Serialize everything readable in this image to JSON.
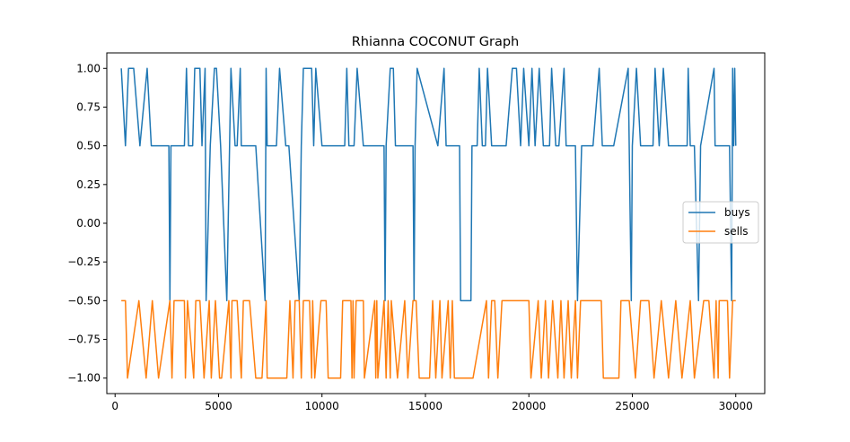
{
  "chart_data": {
    "type": "line",
    "title": "Rhianna COCONUT Graph",
    "xlabel": "",
    "ylabel": "",
    "xlim": [
      -400,
      31400
    ],
    "ylim": [
      -1.1,
      1.1
    ],
    "x_ticks": [
      0,
      5000,
      10000,
      15000,
      20000,
      25000,
      30000
    ],
    "y_ticks": [
      1.0,
      0.75,
      0.5,
      0.25,
      0.0,
      -0.25,
      -0.5,
      -0.75,
      -1.0
    ],
    "x_tick_labels": [
      "0",
      "5000",
      "10000",
      "15000",
      "20000",
      "25000",
      "30000"
    ],
    "y_tick_labels": [
      "1.00",
      "0.75",
      "0.50",
      "0.25",
      "0.00",
      "−0.25",
      "−0.50",
      "−0.75",
      "−1.00"
    ],
    "grid": false,
    "legend_position": "center-right",
    "series": [
      {
        "name": "buys",
        "color": "#1f77b4",
        "points": [
          [
            300,
            1
          ],
          [
            500,
            0.5
          ],
          [
            650,
            1
          ],
          [
            900,
            1
          ],
          [
            1200,
            0.5
          ],
          [
            1550,
            1
          ],
          [
            1750,
            0.5
          ],
          [
            2600,
            0.5
          ],
          [
            2650,
            -0.5
          ],
          [
            2700,
            0.5
          ],
          [
            3350,
            0.5
          ],
          [
            3450,
            1
          ],
          [
            3550,
            0.5
          ],
          [
            3750,
            0.5
          ],
          [
            3850,
            1
          ],
          [
            4100,
            1
          ],
          [
            4200,
            0.5
          ],
          [
            4350,
            1
          ],
          [
            4400,
            -0.5
          ],
          [
            4600,
            0.5
          ],
          [
            4800,
            1
          ],
          [
            4900,
            1
          ],
          [
            5100,
            0.5
          ],
          [
            5400,
            -0.5
          ],
          [
            5600,
            1
          ],
          [
            5800,
            0.5
          ],
          [
            5900,
            0.5
          ],
          [
            6050,
            1
          ],
          [
            6100,
            0.5
          ],
          [
            6800,
            0.5
          ],
          [
            7250,
            -0.5
          ],
          [
            7300,
            1
          ],
          [
            7350,
            0.5
          ],
          [
            7800,
            0.5
          ],
          [
            7950,
            1
          ],
          [
            8250,
            0.5
          ],
          [
            8400,
            0.5
          ],
          [
            8900,
            -0.5
          ],
          [
            9000,
            0.5
          ],
          [
            9100,
            1
          ],
          [
            9500,
            1
          ],
          [
            9600,
            0.5
          ],
          [
            9700,
            1
          ],
          [
            10000,
            0.5
          ],
          [
            11100,
            0.5
          ],
          [
            11200,
            1
          ],
          [
            11300,
            0.5
          ],
          [
            11550,
            0.5
          ],
          [
            11700,
            1
          ],
          [
            12000,
            0.5
          ],
          [
            13000,
            0.5
          ],
          [
            13050,
            -0.5
          ],
          [
            13100,
            0.5
          ],
          [
            13300,
            1
          ],
          [
            13450,
            1
          ],
          [
            13550,
            0.5
          ],
          [
            14400,
            0.5
          ],
          [
            14450,
            -0.5
          ],
          [
            14500,
            0.5
          ],
          [
            14600,
            1
          ],
          [
            15600,
            0.5
          ],
          [
            15900,
            1
          ],
          [
            16000,
            0.5
          ],
          [
            16650,
            0.5
          ],
          [
            16700,
            -0.5
          ],
          [
            17200,
            -0.5
          ],
          [
            17250,
            0.5
          ],
          [
            17500,
            0.5
          ],
          [
            17600,
            1
          ],
          [
            17750,
            0.5
          ],
          [
            17900,
            0.5
          ],
          [
            18000,
            1
          ],
          [
            18200,
            0.5
          ],
          [
            18900,
            0.5
          ],
          [
            19200,
            1
          ],
          [
            19400,
            1
          ],
          [
            19600,
            0.5
          ],
          [
            19750,
            1
          ],
          [
            20000,
            0.5
          ],
          [
            20150,
            1
          ],
          [
            20300,
            0.5
          ],
          [
            20500,
            1
          ],
          [
            20700,
            0.5
          ],
          [
            21000,
            0.5
          ],
          [
            21100,
            1
          ],
          [
            21300,
            0.5
          ],
          [
            21450,
            0.5
          ],
          [
            21700,
            1
          ],
          [
            21800,
            0.5
          ],
          [
            22250,
            0.5
          ],
          [
            22350,
            -0.5
          ],
          [
            22550,
            0.5
          ],
          [
            23100,
            0.5
          ],
          [
            23400,
            1
          ],
          [
            23550,
            0.5
          ],
          [
            24000,
            0.5
          ],
          [
            24100,
            0.5
          ],
          [
            24800,
            1
          ],
          [
            24950,
            -0.5
          ],
          [
            25000,
            0.5
          ],
          [
            25200,
            1
          ],
          [
            25400,
            0.5
          ],
          [
            26000,
            0.5
          ],
          [
            26100,
            1
          ],
          [
            26300,
            0.5
          ],
          [
            26500,
            1
          ],
          [
            26750,
            0.5
          ],
          [
            27650,
            0.5
          ],
          [
            27700,
            1
          ],
          [
            27800,
            0.5
          ],
          [
            28000,
            0.5
          ],
          [
            28200,
            -0.5
          ],
          [
            28300,
            0.5
          ],
          [
            28950,
            1
          ],
          [
            29000,
            0.5
          ],
          [
            29700,
            0.5
          ],
          [
            29800,
            -0.5
          ],
          [
            29850,
            1
          ],
          [
            29900,
            0.5
          ],
          [
            29950,
            1
          ],
          [
            30000,
            0.5
          ]
        ]
      },
      {
        "name": "sells",
        "color": "#ff7f0e",
        "points": [
          [
            300,
            -0.5
          ],
          [
            500,
            -0.5
          ],
          [
            600,
            -1
          ],
          [
            1150,
            -0.5
          ],
          [
            1500,
            -1
          ],
          [
            1800,
            -0.5
          ],
          [
            2100,
            -1
          ],
          [
            2650,
            -0.5
          ],
          [
            2750,
            -1
          ],
          [
            2850,
            -0.5
          ],
          [
            3350,
            -0.5
          ],
          [
            3400,
            -1
          ],
          [
            3500,
            -0.5
          ],
          [
            3800,
            -1
          ],
          [
            3900,
            -0.5
          ],
          [
            4100,
            -0.5
          ],
          [
            4300,
            -1
          ],
          [
            4550,
            -0.5
          ],
          [
            4650,
            -1
          ],
          [
            4850,
            -0.5
          ],
          [
            5050,
            -1
          ],
          [
            5150,
            -1
          ],
          [
            5500,
            -0.5
          ],
          [
            5600,
            -1
          ],
          [
            5650,
            -0.5
          ],
          [
            5900,
            -0.5
          ],
          [
            6100,
            -1
          ],
          [
            6200,
            -0.5
          ],
          [
            6500,
            -0.5
          ],
          [
            6800,
            -1
          ],
          [
            7100,
            -1
          ],
          [
            7300,
            -0.5
          ],
          [
            7350,
            -1
          ],
          [
            8300,
            -1
          ],
          [
            8450,
            -0.5
          ],
          [
            8600,
            -1
          ],
          [
            8700,
            -0.5
          ],
          [
            8900,
            -0.5
          ],
          [
            9000,
            -1
          ],
          [
            9100,
            -0.5
          ],
          [
            9400,
            -0.5
          ],
          [
            9500,
            -1
          ],
          [
            9550,
            -0.5
          ],
          [
            9650,
            -1
          ],
          [
            9950,
            -0.5
          ],
          [
            10200,
            -0.5
          ],
          [
            10300,
            -1
          ],
          [
            10900,
            -1
          ],
          [
            11000,
            -0.5
          ],
          [
            11400,
            -0.5
          ],
          [
            11450,
            -1
          ],
          [
            11500,
            -0.5
          ],
          [
            11550,
            -1
          ],
          [
            11650,
            -0.5
          ],
          [
            12000,
            -0.5
          ],
          [
            12050,
            -1
          ],
          [
            12550,
            -0.5
          ],
          [
            12600,
            -1
          ],
          [
            12650,
            -0.5
          ],
          [
            12700,
            -1
          ],
          [
            13000,
            -0.5
          ],
          [
            13100,
            -1
          ],
          [
            13200,
            -0.5
          ],
          [
            13300,
            -1
          ],
          [
            13350,
            -0.5
          ],
          [
            13650,
            -1
          ],
          [
            14000,
            -0.5
          ],
          [
            14150,
            -1
          ],
          [
            14400,
            -0.5
          ],
          [
            14550,
            -0.5
          ],
          [
            14700,
            -1
          ],
          [
            15200,
            -1
          ],
          [
            15350,
            -0.5
          ],
          [
            15500,
            -1
          ],
          [
            15700,
            -0.5
          ],
          [
            15800,
            -1
          ],
          [
            16100,
            -0.5
          ],
          [
            16200,
            -1
          ],
          [
            16300,
            -0.5
          ],
          [
            16400,
            -1
          ],
          [
            17300,
            -1
          ],
          [
            17950,
            -0.5
          ],
          [
            18050,
            -1
          ],
          [
            18200,
            -0.5
          ],
          [
            18350,
            -0.5
          ],
          [
            18500,
            -1
          ],
          [
            18700,
            -0.5
          ],
          [
            20000,
            -0.5
          ],
          [
            20100,
            -1
          ],
          [
            20450,
            -0.5
          ],
          [
            20600,
            -1
          ],
          [
            20800,
            -0.5
          ],
          [
            20950,
            -1
          ],
          [
            21150,
            -0.5
          ],
          [
            21400,
            -1
          ],
          [
            21550,
            -0.5
          ],
          [
            21700,
            -1
          ],
          [
            21900,
            -0.5
          ],
          [
            22050,
            -1
          ],
          [
            22250,
            -0.5
          ],
          [
            22350,
            -1
          ],
          [
            22500,
            -0.5
          ],
          [
            23500,
            -0.5
          ],
          [
            23600,
            -1
          ],
          [
            24350,
            -1
          ],
          [
            24450,
            -0.5
          ],
          [
            24850,
            -0.5
          ],
          [
            25150,
            -1
          ],
          [
            25400,
            -0.5
          ],
          [
            25800,
            -0.5
          ],
          [
            26050,
            -1
          ],
          [
            26400,
            -0.5
          ],
          [
            26750,
            -1
          ],
          [
            27100,
            -0.5
          ],
          [
            27400,
            -1
          ],
          [
            27800,
            -0.5
          ],
          [
            28000,
            -1
          ],
          [
            28450,
            -0.5
          ],
          [
            28700,
            -0.5
          ],
          [
            28950,
            -1
          ],
          [
            29050,
            -0.5
          ],
          [
            29150,
            -1
          ],
          [
            29200,
            -0.5
          ],
          [
            29600,
            -0.5
          ],
          [
            29700,
            -1
          ],
          [
            29850,
            -0.5
          ],
          [
            30000,
            -0.5
          ]
        ]
      }
    ]
  }
}
